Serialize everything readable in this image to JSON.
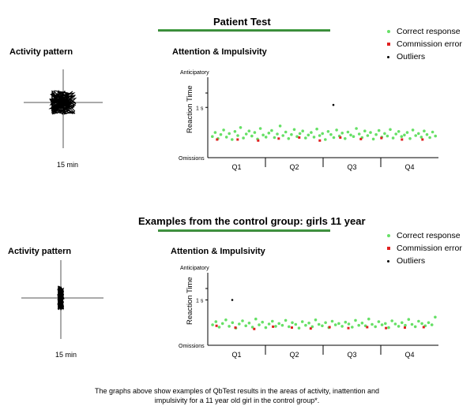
{
  "sections": [
    {
      "title": "Patient Test",
      "activity": {
        "title": "Activity pattern",
        "duration": "15 min"
      },
      "chart_title": "Attention & Impulsivity",
      "legend": [
        {
          "label": "Correct response",
          "color": "#66e066"
        },
        {
          "label": "Commission error",
          "color": "#e02020"
        },
        {
          "label": "Outliers",
          "color": "#000000"
        }
      ]
    },
    {
      "title": "Examples from the control group: girls 11 year",
      "activity": {
        "title": "Activity pattern",
        "duration": "15 min"
      },
      "chart_title": "Attention & Impulsivity",
      "legend": [
        {
          "label": "Correct response",
          "color": "#66e066"
        },
        {
          "label": "Commission error",
          "color": "#e02020"
        },
        {
          "label": "Outliers",
          "color": "#000000"
        }
      ]
    }
  ],
  "caption_line1": "The graphs above show examples of QbTest results in the areas of activity, inattention and",
  "caption_line2": "impulsivity for a 11 year old girl in the control group*.",
  "chart_data": [
    {
      "type": "scatter",
      "title": "Attention & Impulsivity",
      "ylabel": "Reaction Time",
      "y_ticks": [
        "Anticipatory",
        "1 s",
        "Omissions"
      ],
      "x_ticks": [
        "Q1",
        "Q2",
        "Q3",
        "Q4"
      ],
      "series": [
        {
          "name": "Correct response",
          "values": [
            0.42,
            0.5,
            0.38,
            0.46,
            0.55,
            0.41,
            0.48,
            0.36,
            0.52,
            0.44,
            0.6,
            0.39,
            0.47,
            0.53,
            0.43,
            0.5,
            0.37,
            0.58,
            0.45,
            0.41,
            0.49,
            0.54,
            0.4,
            0.47,
            0.63,
            0.44,
            0.51,
            0.38,
            0.46,
            0.56,
            0.42,
            0.48,
            0.53,
            0.39,
            0.45,
            0.5,
            0.41,
            0.57,
            0.44,
            0.48,
            0.36,
            0.52,
            0.46,
            0.4,
            0.55,
            0.43,
            0.49,
            0.38,
            0.51,
            0.45,
            0.42,
            0.58,
            0.47,
            0.4,
            0.53,
            0.44,
            0.5,
            0.37,
            0.46,
            0.54,
            0.41,
            0.48,
            0.43,
            0.56,
            0.39,
            0.47,
            0.52,
            0.42,
            0.45,
            0.5,
            0.38,
            0.55,
            0.44,
            0.48,
            0.41,
            0.53,
            0.46,
            0.4,
            0.51,
            0.43
          ]
        },
        {
          "name": "Commission error",
          "values": [
            0.36,
            0.36,
            0.34,
            0.38,
            0.4,
            0.34,
            0.4,
            0.37,
            0.39,
            0.36,
            0.36
          ]
        },
        {
          "name": "Outliers",
          "values": [
            1.05
          ]
        }
      ]
    },
    {
      "type": "scatter",
      "title": "Attention & Impulsivity",
      "ylabel": "Reaction Time",
      "y_ticks": [
        "Anticipatory",
        "1 s",
        "Omissions"
      ],
      "x_ticks": [
        "Q1",
        "Q2",
        "Q3",
        "Q4"
      ],
      "series": [
        {
          "name": "Correct response",
          "values": [
            0.45,
            0.52,
            0.4,
            0.48,
            0.56,
            0.42,
            0.5,
            0.38,
            0.47,
            0.54,
            0.43,
            0.49,
            0.4,
            0.58,
            0.45,
            0.51,
            0.39,
            0.47,
            0.53,
            0.42,
            0.48,
            0.44,
            0.55,
            0.41,
            0.5,
            0.46,
            0.38,
            0.52,
            0.44,
            0.49,
            0.41,
            0.56,
            0.46,
            0.43,
            0.5,
            0.39,
            0.53,
            0.45,
            0.48,
            0.42,
            0.51,
            0.47,
            0.4,
            0.55,
            0.44,
            0.49,
            0.43,
            0.58,
            0.46,
            0.41,
            0.52,
            0.45,
            0.48,
            0.39,
            0.54,
            0.47,
            0.42,
            0.5,
            0.44,
            0.57,
            0.46,
            0.41,
            0.53,
            0.48,
            0.43,
            0.5,
            0.45,
            0.62
          ]
        },
        {
          "name": "Commission error",
          "values": [
            0.43,
            0.39,
            0.36,
            0.41,
            0.39,
            0.37,
            0.4,
            0.38,
            0.4,
            0.38,
            0.39,
            0.4
          ]
        },
        {
          "name": "Outliers",
          "values": [
            1.0
          ]
        }
      ]
    }
  ]
}
